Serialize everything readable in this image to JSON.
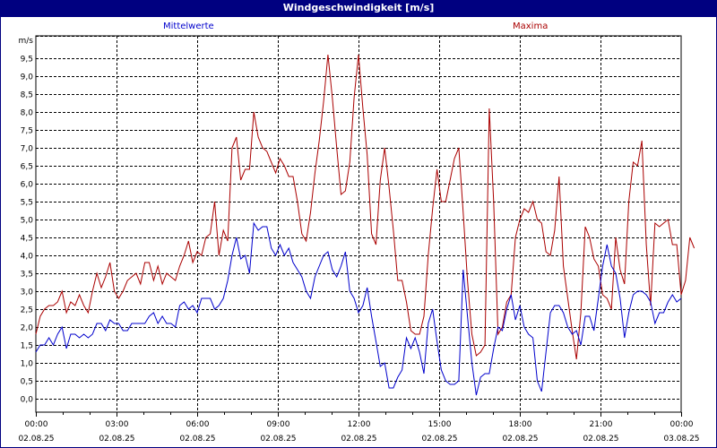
{
  "window": {
    "title": "Windgeschwindigkeit [m/s]"
  },
  "legend": {
    "mean_label": "Mittelwerte",
    "max_label": "Maxima"
  },
  "colors": {
    "title_bg": "#000080",
    "mean": "#0000cc",
    "max": "#aa0000",
    "grid": "#000000"
  },
  "chart_data": {
    "type": "line",
    "title": "Windgeschwindigkeit [m/s]",
    "xlabel": "",
    "ylabel": "m/s",
    "ylim": [
      0,
      9.5
    ],
    "grid": true,
    "legend_position": "top",
    "x_start": "02.08.25 00:00",
    "x_step_minutes": 10,
    "x_ticks": [
      {
        "time": "00:00",
        "date": "02.08.25"
      },
      {
        "time": "03:00",
        "date": "02.08.25"
      },
      {
        "time": "06:00",
        "date": "02.08.25"
      },
      {
        "time": "09:00",
        "date": "02.08.25"
      },
      {
        "time": "12:00",
        "date": "02.08.25"
      },
      {
        "time": "15:00",
        "date": "02.08.25"
      },
      {
        "time": "18:00",
        "date": "02.08.25"
      },
      {
        "time": "21:00",
        "date": "02.08.25"
      },
      {
        "time": "00:00",
        "date": "03.08.25"
      }
    ],
    "y_ticks": [
      "0,0",
      "0,5",
      "1,0",
      "1,5",
      "2,0",
      "2,5",
      "3,0",
      "3,5",
      "4,0",
      "4,5",
      "5,0",
      "5,5",
      "6,0",
      "6,5",
      "7,0",
      "7,5",
      "8,0",
      "8,5",
      "9,0",
      "9,5"
    ],
    "series": [
      {
        "name": "Mittelwerte",
        "color": "#0000cc",
        "values": [
          1.3,
          1.5,
          1.5,
          1.7,
          1.5,
          1.8,
          2.0,
          1.4,
          1.8,
          1.8,
          1.7,
          1.8,
          1.7,
          1.8,
          2.1,
          2.1,
          1.9,
          2.2,
          2.1,
          2.1,
          1.9,
          1.9,
          2.1,
          2.1,
          2.1,
          2.1,
          2.3,
          2.4,
          2.1,
          2.3,
          2.1,
          2.1,
          2.0,
          2.6,
          2.7,
          2.5,
          2.6,
          2.4,
          2.8,
          2.8,
          2.8,
          2.5,
          2.6,
          2.8,
          3.3,
          4.0,
          4.5,
          3.9,
          4.0,
          3.5,
          4.9,
          4.7,
          4.8,
          4.8,
          4.2,
          4.0,
          4.3,
          4.0,
          4.2,
          3.8,
          3.6,
          3.4,
          3.0,
          2.8,
          3.4,
          3.7,
          4.0,
          4.1,
          3.6,
          3.4,
          3.7,
          4.1,
          3.0,
          2.8,
          2.4,
          2.6,
          3.1,
          2.3,
          1.6,
          0.9,
          1.0,
          0.3,
          0.3,
          0.6,
          0.8,
          1.7,
          1.4,
          1.7,
          1.3,
          0.7,
          2.1,
          2.5,
          1.6,
          0.8,
          0.5,
          0.4,
          0.4,
          0.5,
          3.6,
          2.3,
          1.0,
          0.1,
          0.6,
          0.7,
          0.7,
          1.4,
          2.0,
          1.9,
          2.5,
          2.9,
          2.2,
          2.6,
          2.0,
          1.8,
          1.7,
          0.5,
          0.2,
          1.3,
          2.4,
          2.6,
          2.6,
          2.4,
          2.0,
          1.8,
          1.9,
          1.5,
          2.3,
          2.3,
          1.9,
          2.8,
          3.7,
          4.3,
          3.7,
          3.5,
          2.8,
          1.7,
          2.4,
          2.9,
          3.0,
          3.0,
          2.9,
          2.7,
          2.1,
          2.4,
          2.4,
          2.7,
          2.9,
          2.7,
          2.8
        ]
      },
      {
        "name": "Maxima",
        "color": "#aa0000",
        "values": [
          1.8,
          2.3,
          2.5,
          2.6,
          2.6,
          2.7,
          3.0,
          2.4,
          2.7,
          2.6,
          2.9,
          2.6,
          2.4,
          3.0,
          3.5,
          3.1,
          3.4,
          3.8,
          3.0,
          2.8,
          3.0,
          3.3,
          3.4,
          3.5,
          3.2,
          3.8,
          3.8,
          3.3,
          3.7,
          3.2,
          3.5,
          3.4,
          3.3,
          3.7,
          4.0,
          4.4,
          3.8,
          4.1,
          4.0,
          4.5,
          4.6,
          5.5,
          4.0,
          4.7,
          4.4,
          7.0,
          7.3,
          6.1,
          6.4,
          6.4,
          8.0,
          7.3,
          7.0,
          6.9,
          6.6,
          6.3,
          6.7,
          6.5,
          6.2,
          6.2,
          5.5,
          4.6,
          4.4,
          5.2,
          6.3,
          7.2,
          8.3,
          9.6,
          8.4,
          7.0,
          5.7,
          5.8,
          6.6,
          8.4,
          9.6,
          8.1,
          6.8,
          4.6,
          4.3,
          6.1,
          7.0,
          5.9,
          4.7,
          3.3,
          3.3,
          2.7,
          1.9,
          1.8,
          1.8,
          2.3,
          4.0,
          5.3,
          6.4,
          5.5,
          5.5,
          6.1,
          6.7,
          7.0,
          5.2,
          3.3,
          1.8,
          1.2,
          1.3,
          1.5,
          8.1,
          5.5,
          1.8,
          2.0,
          2.7,
          2.9,
          4.5,
          5.0,
          5.3,
          5.2,
          5.5,
          5.0,
          4.9,
          4.1,
          4.0,
          4.7,
          6.2,
          3.7,
          2.8,
          1.9,
          1.1,
          2.4,
          4.8,
          4.5,
          3.9,
          3.7,
          2.9,
          2.8,
          2.5,
          4.5,
          3.6,
          3.2,
          5.5,
          6.6,
          6.5,
          7.2,
          4.3,
          2.6,
          4.9,
          4.8,
          4.9,
          5.0,
          4.3,
          4.3,
          2.9,
          3.3,
          4.5,
          4.2
        ]
      }
    ]
  }
}
